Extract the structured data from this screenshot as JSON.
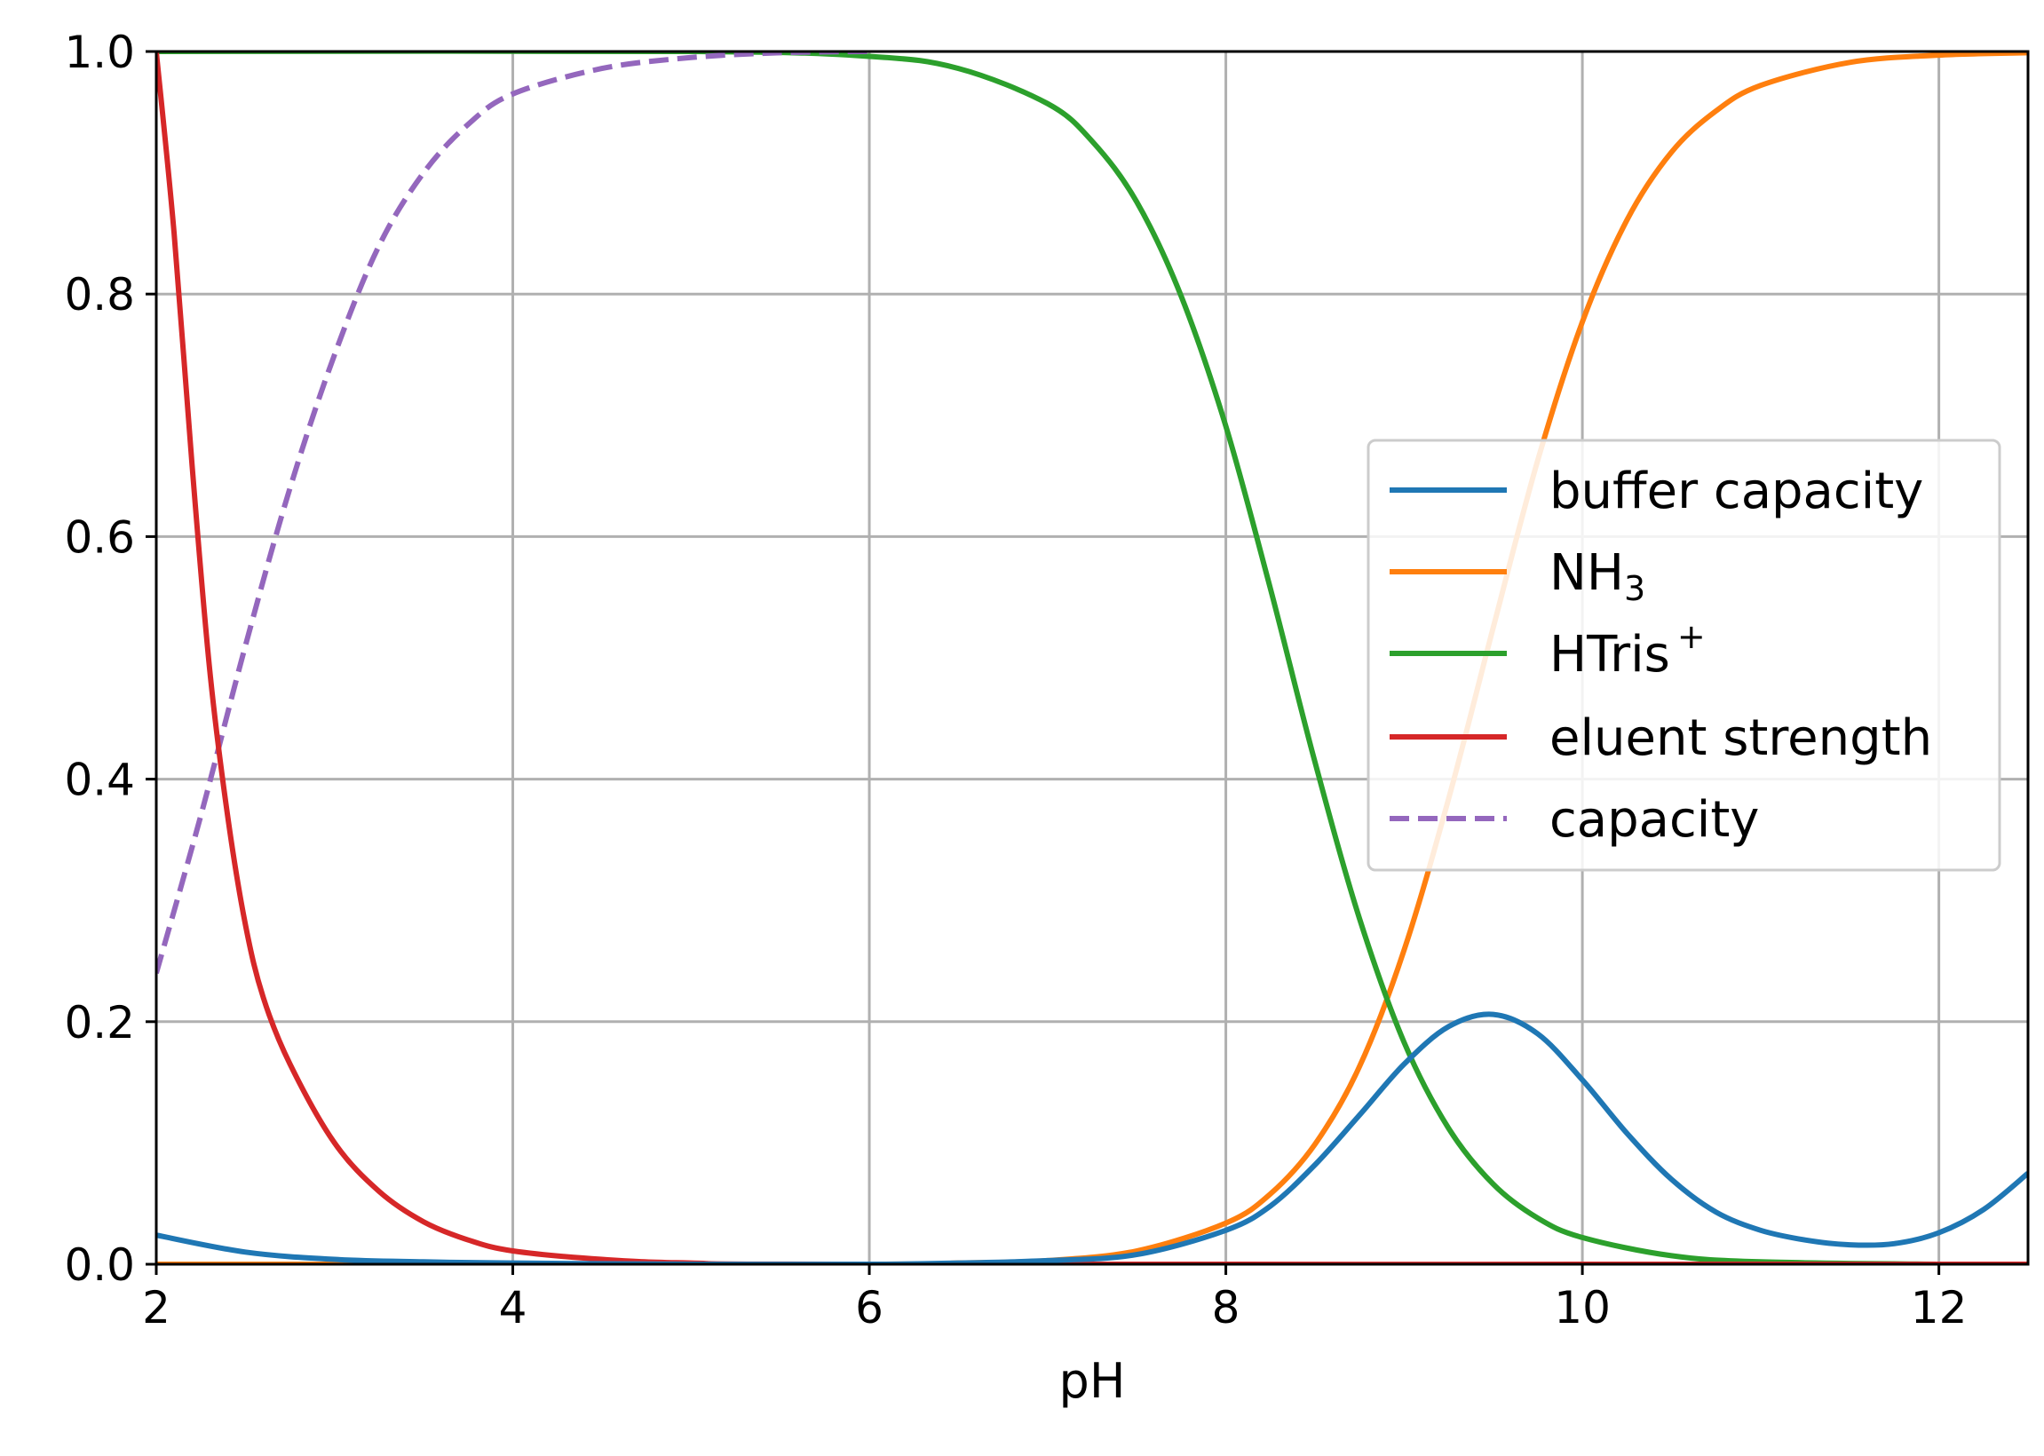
{
  "chart_data": {
    "type": "line",
    "title": "",
    "xlabel": "pH",
    "ylabel": "",
    "xlim": [
      2,
      12.5
    ],
    "ylim": [
      0,
      1
    ],
    "xticks": [
      2,
      4,
      6,
      8,
      10,
      12
    ],
    "yticks": [
      0.0,
      0.2,
      0.4,
      0.6,
      0.8,
      1.0
    ],
    "xtick_labels": [
      "2",
      "4",
      "6",
      "8",
      "10",
      "12"
    ],
    "ytick_labels": [
      "0.0",
      "0.2",
      "0.4",
      "0.6",
      "0.8",
      "1.0"
    ],
    "grid": true,
    "legend_position": "center-right",
    "series": [
      {
        "name": "buffer capacity",
        "color": "#1f77b4",
        "dash": "solid",
        "points": [
          [
            2.0,
            0.024
          ],
          [
            2.5,
            0.01
          ],
          [
            3.0,
            0.004
          ],
          [
            3.5,
            0.002
          ],
          [
            4.0,
            0.001
          ],
          [
            5.0,
            0.0
          ],
          [
            6.0,
            0.0
          ],
          [
            6.5,
            0.001
          ],
          [
            7.0,
            0.003
          ],
          [
            7.5,
            0.008
          ],
          [
            8.0,
            0.028
          ],
          [
            8.25,
            0.048
          ],
          [
            8.5,
            0.082
          ],
          [
            8.75,
            0.123
          ],
          [
            9.0,
            0.165
          ],
          [
            9.25,
            0.196
          ],
          [
            9.5,
            0.206
          ],
          [
            9.75,
            0.19
          ],
          [
            10.0,
            0.152
          ],
          [
            10.25,
            0.108
          ],
          [
            10.5,
            0.07
          ],
          [
            10.75,
            0.043
          ],
          [
            11.0,
            0.028
          ],
          [
            11.25,
            0.02
          ],
          [
            11.5,
            0.016
          ],
          [
            11.75,
            0.017
          ],
          [
            12.0,
            0.026
          ],
          [
            12.25,
            0.045
          ],
          [
            12.5,
            0.075
          ]
        ]
      },
      {
        "name": "NH3",
        "color": "#ff7f0e",
        "dash": "solid",
        "points": [
          [
            2.0,
            0.0
          ],
          [
            6.0,
            0.0
          ],
          [
            6.5,
            0.001
          ],
          [
            7.0,
            0.003
          ],
          [
            7.5,
            0.011
          ],
          [
            8.0,
            0.034
          ],
          [
            8.25,
            0.058
          ],
          [
            8.5,
            0.099
          ],
          [
            8.75,
            0.163
          ],
          [
            9.0,
            0.259
          ],
          [
            9.25,
            0.384
          ],
          [
            9.5,
            0.525
          ],
          [
            9.75,
            0.663
          ],
          [
            10.0,
            0.777
          ],
          [
            10.25,
            0.861
          ],
          [
            10.5,
            0.917
          ],
          [
            10.75,
            0.951
          ],
          [
            11.0,
            0.972
          ],
          [
            11.5,
            0.991
          ],
          [
            12.0,
            0.997
          ],
          [
            12.5,
            0.999
          ]
        ]
      },
      {
        "name": "HTris+",
        "color": "#2ca02c",
        "dash": "solid",
        "points": [
          [
            2.0,
            1.0
          ],
          [
            5.0,
            1.0
          ],
          [
            6.0,
            0.996
          ],
          [
            6.5,
            0.986
          ],
          [
            7.0,
            0.957
          ],
          [
            7.25,
            0.926
          ],
          [
            7.5,
            0.876
          ],
          [
            7.75,
            0.798
          ],
          [
            8.0,
            0.691
          ],
          [
            8.25,
            0.557
          ],
          [
            8.5,
            0.414
          ],
          [
            8.75,
            0.285
          ],
          [
            9.0,
            0.183
          ],
          [
            9.25,
            0.112
          ],
          [
            9.5,
            0.066
          ],
          [
            9.75,
            0.038
          ],
          [
            10.0,
            0.022
          ],
          [
            10.5,
            0.007
          ],
          [
            11.0,
            0.002
          ],
          [
            12.0,
            0.0
          ],
          [
            12.5,
            0.0
          ]
        ]
      },
      {
        "name": "eluent strength",
        "color": "#d62728",
        "dash": "solid",
        "points": [
          [
            2.0,
            1.0
          ],
          [
            2.1,
            0.85
          ],
          [
            2.2,
            0.66
          ],
          [
            2.3,
            0.49
          ],
          [
            2.4,
            0.37
          ],
          [
            2.5,
            0.28
          ],
          [
            2.6,
            0.22
          ],
          [
            2.75,
            0.165
          ],
          [
            3.0,
            0.1
          ],
          [
            3.25,
            0.06
          ],
          [
            3.5,
            0.035
          ],
          [
            3.75,
            0.02
          ],
          [
            4.0,
            0.011
          ],
          [
            4.5,
            0.004
          ],
          [
            5.0,
            0.001
          ],
          [
            6.0,
            0.0
          ],
          [
            12.5,
            0.0
          ]
        ]
      },
      {
        "name": "capacity",
        "color": "#9467bd",
        "dash": "dashed",
        "points": [
          [
            2.0,
            0.24
          ],
          [
            2.25,
            0.37
          ],
          [
            2.5,
            0.51
          ],
          [
            2.75,
            0.64
          ],
          [
            3.0,
            0.75
          ],
          [
            3.25,
            0.84
          ],
          [
            3.5,
            0.9
          ],
          [
            3.75,
            0.94
          ],
          [
            4.0,
            0.965
          ],
          [
            4.5,
            0.986
          ],
          [
            5.0,
            0.995
          ],
          [
            5.5,
            0.999
          ],
          [
            6.0,
            1.0
          ]
        ]
      }
    ]
  },
  "legend_labels": {
    "s0": "buffer capacity",
    "s1_main": "NH",
    "s1_sub": "3",
    "s2_main": "HTris",
    "s2_sup": "+",
    "s3": "eluent strength",
    "s4": "capacity"
  }
}
